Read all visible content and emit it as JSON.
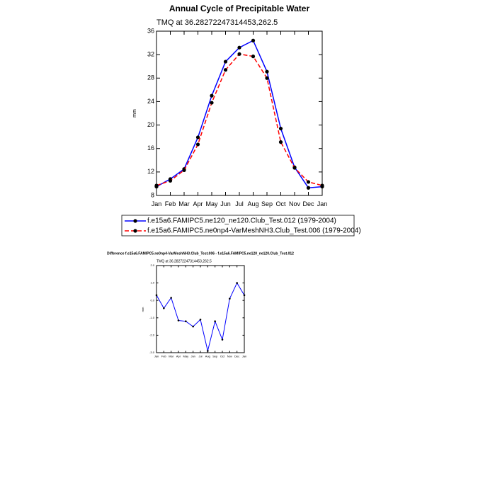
{
  "chart_data": [
    {
      "type": "line",
      "title": "Annual Cycle of Precipitable Water",
      "subtitle": "TMQ at 36.28272247314453,262.5",
      "y_label": "mm",
      "categories": [
        "Jan",
        "Feb",
        "Mar",
        "Apr",
        "May",
        "Jun",
        "Jul",
        "Aug",
        "Sep",
        "Oct",
        "Nov",
        "Dec",
        "Jan"
      ],
      "series": [
        {
          "name": "f.e15a6.FAMIPC5.ne120_ne120.Club_Test.012 (1979-2004)",
          "color": "#0000ff",
          "line_style": "solid",
          "values": [
            9.5,
            10.8,
            12.5,
            17.9,
            25.0,
            30.8,
            33.2,
            34.4,
            29.1,
            19.4,
            12.8,
            9.3,
            9.5
          ]
        },
        {
          "name": "f.e15a6.FAMIPC5.ne0np4-VarMeshNH3.Club_Test.006 (1979-2004)",
          "color": "#ff0000",
          "line_style": "dashed",
          "values": [
            9.7,
            10.5,
            12.3,
            16.7,
            23.8,
            29.4,
            32.1,
            31.7,
            28.0,
            17.1,
            12.7,
            10.3,
            9.7
          ]
        }
      ],
      "ylim": [
        8,
        36
      ],
      "yticks": [
        8,
        12,
        16,
        20,
        24,
        28,
        32,
        36
      ]
    },
    {
      "type": "line",
      "title": "Difference f.e15a6.FAMIPC5.ne0np4-VarMeshNH3.Club_Test.006 - f.e15a6.FAMIPC5.ne120_ne120.Club_Test.012",
      "subtitle": "TMQ at 36.28272247314453,262.5",
      "y_label": "mm",
      "categories": [
        "Jan",
        "Feb",
        "Mar",
        "Apr",
        "May",
        "Jun",
        "Jul",
        "Aug",
        "Sep",
        "Oct",
        "Nov",
        "Dec",
        "Jan"
      ],
      "series": [
        {
          "color": "#0000ff",
          "line_style": "solid",
          "values": [
            0.3,
            -0.45,
            0.15,
            -1.15,
            -1.2,
            -1.5,
            -1.1,
            -2.9,
            -1.2,
            -2.25,
            0.1,
            1.0,
            0.3
          ]
        }
      ],
      "ylim": [
        -3,
        2
      ],
      "yticks": [
        {
          "value": -3,
          "label": "-3.0"
        },
        {
          "value": -2,
          "label": "-2.0"
        },
        {
          "value": -1,
          "label": "-1.0"
        },
        {
          "value": 0,
          "label": "0.0"
        },
        {
          "value": 1,
          "label": "1.0"
        },
        {
          "value": 2,
          "label": "2.0"
        }
      ]
    }
  ]
}
